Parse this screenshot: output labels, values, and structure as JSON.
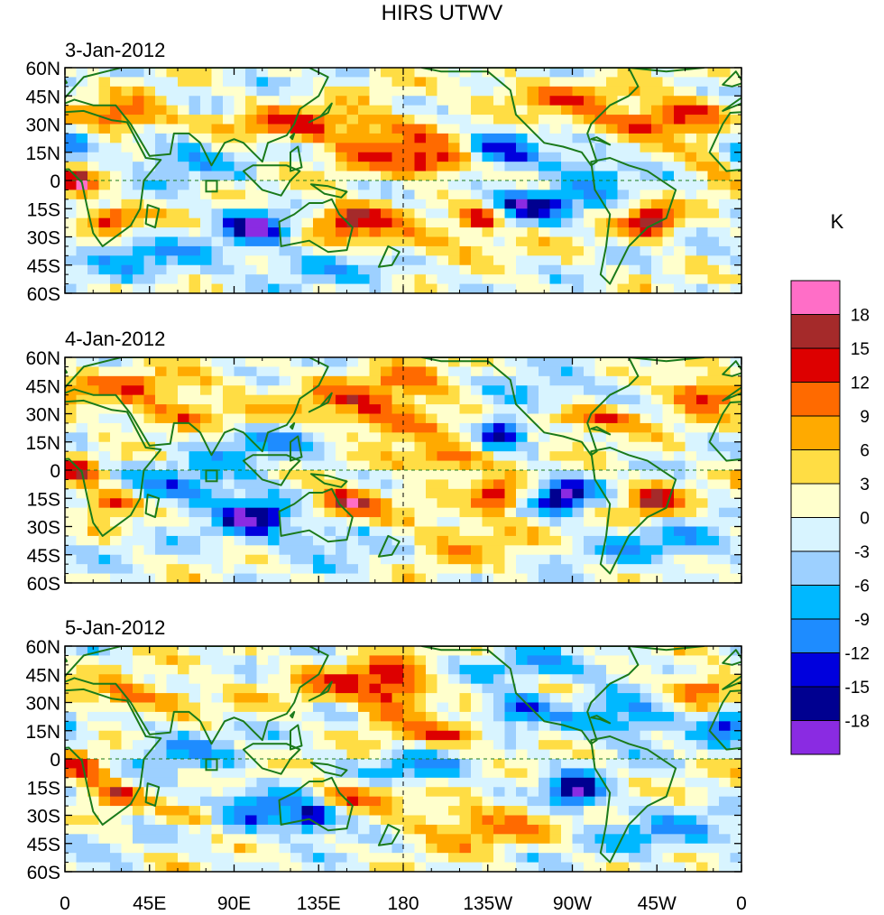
{
  "figure": {
    "title": "HIRS UTWV",
    "unit": "K"
  },
  "chart_data": {
    "type": "heatmap",
    "title": "HIRS UTWV",
    "unit": "K",
    "panels": [
      {
        "date": "3-Jan-2012"
      },
      {
        "date": "4-Jan-2012"
      },
      {
        "date": "5-Jan-2012"
      }
    ],
    "lat_ticks": [
      "60N",
      "45N",
      "30N",
      "15N",
      "0",
      "15S",
      "30S",
      "45S",
      "60S"
    ],
    "lat_values": [
      60,
      45,
      30,
      15,
      0,
      -15,
      -30,
      -45,
      -60
    ],
    "lon_ticks": [
      "0",
      "45E",
      "90E",
      "135E",
      "180",
      "135W",
      "90W",
      "45W",
      "0"
    ],
    "lon_values": [
      0,
      45,
      90,
      135,
      180,
      225,
      270,
      315,
      360
    ],
    "lat_range": [
      -60,
      60
    ],
    "lon_range": [
      0,
      360
    ],
    "colorbar_levels": [
      "18",
      "15",
      "12",
      "9",
      "6",
      "3",
      "0",
      "-3",
      "-6",
      "-9",
      "-12",
      "-15",
      "-18"
    ],
    "colorbar_colors": [
      "#ff6ec7",
      "#a52a2a",
      "#dd0000",
      "#ff6a00",
      "#ffaa00",
      "#ffdd44",
      "#ffffcc",
      "#d8f4ff",
      "#9dd0ff",
      "#00b8ff",
      "#1e8cff",
      "#0000dd",
      "#000090",
      "#8a2be2"
    ]
  }
}
